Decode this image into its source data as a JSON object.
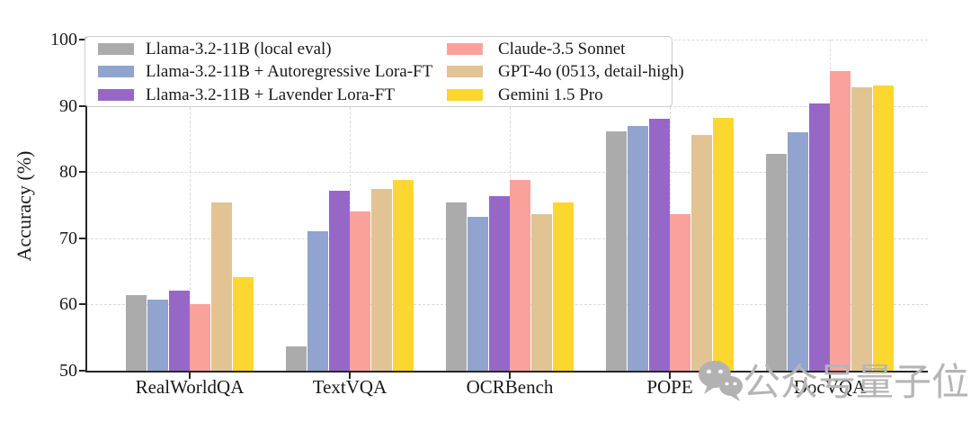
{
  "chart_data": {
    "type": "bar",
    "title": "",
    "xlabel": "",
    "ylabel": "Accuracy (%)",
    "ylim": [
      50,
      100
    ],
    "yticks": [
      50,
      60,
      70,
      80,
      90,
      100
    ],
    "grid": "dashed light-gray horizontal lines at 60-100 and vertical lines at each category center",
    "legend_position": "upper left, 2 columns, white box with light border",
    "categories": [
      "RealWorldQA",
      "TextVQA",
      "OCRBench",
      "POPE",
      "DocVQA"
    ],
    "series": [
      {
        "name": "Llama-3.2-11B (local eval)",
        "color": "#ababab",
        "values": [
          61.4,
          53.7,
          75.4,
          86.2,
          82.8
        ]
      },
      {
        "name": "Llama-3.2-11B + Autoregressive Lora-FT",
        "color": "#91a4cf",
        "values": [
          60.8,
          71.0,
          73.2,
          86.9,
          86.0
        ]
      },
      {
        "name": "Llama-3.2-11B + Lavender Lora-FT",
        "color": "#9767c8",
        "values": [
          62.1,
          77.2,
          76.4,
          88.1,
          90.4
        ]
      },
      {
        "name": "Claude-3.5 Sonnet",
        "color": "#fba19c",
        "values": [
          60.1,
          74.1,
          78.8,
          73.6,
          95.2
        ]
      },
      {
        "name": "GPT-4o (0513, detail-high)",
        "color": "#e2c394",
        "values": [
          75.4,
          77.4,
          73.6,
          85.6,
          92.8
        ]
      },
      {
        "name": "Gemini 1.5 Pro",
        "color": "#fdd62f",
        "values": [
          64.1,
          78.8,
          75.4,
          88.2,
          93.1
        ]
      }
    ]
  },
  "watermark": {
    "icon": "wechat-icon",
    "text": "公众号量子位",
    "color": "#b5b5b5"
  }
}
